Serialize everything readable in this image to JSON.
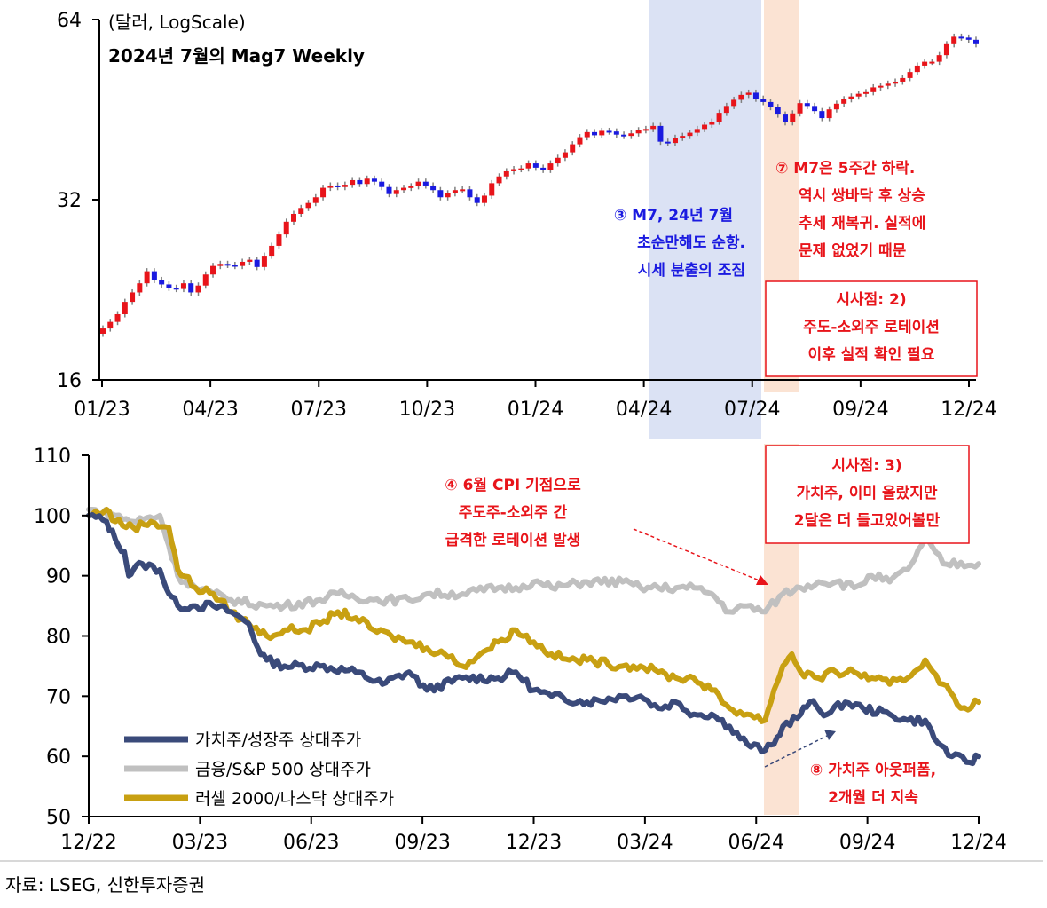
{
  "source": "자료: LSEG, 신한투자증권",
  "chart_data": [
    {
      "type": "candlestick",
      "title": "2024년 7월의 Mag7 Weekly",
      "unit_label": "(달러, LogScale)",
      "y_scale": "log",
      "ylim": [
        16,
        64
      ],
      "y_ticks": [
        "16",
        "32",
        "64"
      ],
      "x_ticks": [
        "01/23",
        "04/23",
        "07/23",
        "10/23",
        "01/24",
        "04/24",
        "07/24",
        "09/24",
        "12/24"
      ],
      "colors": {
        "up": "#e8141a",
        "down": "#1a1ae0",
        "wick": "#808080"
      },
      "highlights": [
        {
          "from_week": 65,
          "to_week": 79,
          "color": "#dbe2f4"
        },
        {
          "from_week": 80,
          "to_week": 84,
          "color": "#fbe3d3"
        }
      ],
      "weekly_close": [
        19.5,
        20.0,
        20.6,
        21.6,
        22.4,
        23.2,
        24.3,
        23.5,
        23.1,
        22.8,
        22.7,
        23.2,
        22.4,
        23.0,
        24.0,
        24.8,
        25.0,
        24.9,
        24.8,
        25.2,
        25.4,
        24.7,
        25.8,
        26.8,
        28.0,
        29.4,
        30.3,
        31.0,
        31.6,
        32.3,
        33.5,
        33.8,
        33.6,
        33.9,
        34.5,
        34.0,
        34.7,
        34.3,
        33.6,
        32.7,
        33.2,
        33.5,
        33.7,
        34.3,
        33.8,
        33.2,
        32.3,
        32.8,
        33.2,
        33.3,
        32.3,
        31.6,
        32.5,
        34.1,
        35.0,
        35.7,
        36.0,
        36.1,
        36.8,
        36.2,
        35.9,
        36.8,
        37.6,
        38.4,
        39.6,
        40.7,
        41.5,
        41.0,
        41.7,
        41.6,
        41.1,
        40.9,
        41.3,
        41.8,
        42.0,
        42.5,
        40.0,
        39.8,
        40.6,
        40.9,
        41.4,
        42.0,
        42.7,
        43.2,
        44.7,
        45.9,
        47.0,
        47.9,
        48.3,
        47.2,
        46.6,
        45.7,
        44.4,
        43.1,
        44.6,
        46.4,
        45.9,
        45.0,
        43.8,
        45.3,
        46.3,
        47.1,
        47.6,
        48.1,
        48.4,
        49.3,
        49.6,
        50.0,
        50.4,
        51.1,
        52.3,
        53.6,
        54.4,
        54.4,
        55.8,
        58.2,
        59.9,
        59.7,
        59.2,
        58.2
      ]
    },
    {
      "type": "line",
      "ylim": [
        50,
        110
      ],
      "y_ticks": [
        "50",
        "60",
        "70",
        "80",
        "90",
        "100",
        "110"
      ],
      "x_ticks": [
        "12/22",
        "03/23",
        "06/23",
        "09/23",
        "12/23",
        "03/24",
        "06/24",
        "09/24",
        "12/24"
      ],
      "highlight": {
        "from": 0.76,
        "to": 0.8,
        "color": "#fbe3d3"
      },
      "series": [
        {
          "name": "가치주/성장주 상대주가",
          "color": "#3a4a7a",
          "anchors": [
            [
              0,
              100
            ],
            [
              0.02,
              99
            ],
            [
              0.03,
              96
            ],
            [
              0.04,
              94
            ],
            [
              0.045,
              90
            ],
            [
              0.05,
              91
            ],
            [
              0.06,
              92
            ],
            [
              0.08,
              91
            ],
            [
              0.09,
              87
            ],
            [
              0.1,
              85
            ],
            [
              0.12,
              85
            ],
            [
              0.14,
              85
            ],
            [
              0.16,
              84
            ],
            [
              0.18,
              82
            ],
            [
              0.19,
              78
            ],
            [
              0.2,
              76
            ],
            [
              0.22,
              75
            ],
            [
              0.26,
              75
            ],
            [
              0.3,
              74
            ],
            [
              0.33,
              72
            ],
            [
              0.36,
              74
            ],
            [
              0.38,
              71
            ],
            [
              0.42,
              73
            ],
            [
              0.46,
              73
            ],
            [
              0.48,
              74
            ],
            [
              0.5,
              71
            ],
            [
              0.52,
              70
            ],
            [
              0.56,
              69
            ],
            [
              0.6,
              70
            ],
            [
              0.62,
              70
            ],
            [
              0.64,
              68
            ],
            [
              0.66,
              69
            ],
            [
              0.68,
              67
            ],
            [
              0.7,
              67
            ],
            [
              0.72,
              65
            ],
            [
              0.74,
              62
            ],
            [
              0.76,
              61
            ],
            [
              0.77,
              62
            ],
            [
              0.78,
              65
            ],
            [
              0.8,
              67
            ],
            [
              0.81,
              69
            ],
            [
              0.83,
              67
            ],
            [
              0.85,
              69
            ],
            [
              0.87,
              68
            ],
            [
              0.9,
              67
            ],
            [
              0.92,
              66
            ],
            [
              0.94,
              66
            ],
            [
              0.95,
              63
            ],
            [
              0.97,
              60
            ],
            [
              0.99,
              59
            ],
            [
              1,
              60
            ]
          ]
        },
        {
          "name": "금융/S&P 500 상대주가",
          "color": "#c0c0c0",
          "anchors": [
            [
              0,
              101
            ],
            [
              0.03,
              100
            ],
            [
              0.05,
              99
            ],
            [
              0.08,
              100
            ],
            [
              0.09,
              95
            ],
            [
              0.1,
              90
            ],
            [
              0.12,
              88
            ],
            [
              0.14,
              87
            ],
            [
              0.16,
              86
            ],
            [
              0.2,
              85
            ],
            [
              0.22,
              85
            ],
            [
              0.26,
              86
            ],
            [
              0.28,
              87
            ],
            [
              0.32,
              86
            ],
            [
              0.36,
              86
            ],
            [
              0.38,
              87
            ],
            [
              0.42,
              87
            ],
            [
              0.46,
              88
            ],
            [
              0.48,
              88
            ],
            [
              0.5,
              89
            ],
            [
              0.52,
              88
            ],
            [
              0.56,
              89
            ],
            [
              0.6,
              89
            ],
            [
              0.62,
              88
            ],
            [
              0.64,
              88
            ],
            [
              0.66,
              88
            ],
            [
              0.68,
              88
            ],
            [
              0.7,
              87
            ],
            [
              0.72,
              84
            ],
            [
              0.74,
              85
            ],
            [
              0.76,
              84
            ],
            [
              0.78,
              87
            ],
            [
              0.8,
              88
            ],
            [
              0.82,
              89
            ],
            [
              0.84,
              89
            ],
            [
              0.86,
              88
            ],
            [
              0.88,
              90
            ],
            [
              0.9,
              89
            ],
            [
              0.92,
              91
            ],
            [
              0.94,
              96
            ],
            [
              0.96,
              92
            ],
            [
              1,
              92
            ]
          ]
        },
        {
          "name": "러셀 2000/나스닥 상대주가",
          "color": "#c8a012",
          "anchors": [
            [
              0,
              100
            ],
            [
              0.02,
              101
            ],
            [
              0.03,
              99
            ],
            [
              0.05,
              98
            ],
            [
              0.07,
              99
            ],
            [
              0.09,
              98
            ],
            [
              0.1,
              91
            ],
            [
              0.12,
              88
            ],
            [
              0.14,
              87
            ],
            [
              0.16,
              84
            ],
            [
              0.18,
              82
            ],
            [
              0.2,
              80
            ],
            [
              0.22,
              81
            ],
            [
              0.24,
              81
            ],
            [
              0.26,
              82
            ],
            [
              0.28,
              84
            ],
            [
              0.3,
              83
            ],
            [
              0.32,
              81
            ],
            [
              0.34,
              80
            ],
            [
              0.36,
              79
            ],
            [
              0.38,
              78
            ],
            [
              0.4,
              77
            ],
            [
              0.42,
              75
            ],
            [
              0.44,
              77
            ],
            [
              0.46,
              79
            ],
            [
              0.48,
              81
            ],
            [
              0.5,
              79
            ],
            [
              0.52,
              77
            ],
            [
              0.54,
              76
            ],
            [
              0.56,
              76
            ],
            [
              0.6,
              75
            ],
            [
              0.62,
              75
            ],
            [
              0.64,
              74
            ],
            [
              0.66,
              73
            ],
            [
              0.68,
              73
            ],
            [
              0.7,
              71
            ],
            [
              0.72,
              68
            ],
            [
              0.74,
              67
            ],
            [
              0.76,
              66
            ],
            [
              0.77,
              71
            ],
            [
              0.78,
              75
            ],
            [
              0.79,
              77
            ],
            [
              0.8,
              74
            ],
            [
              0.82,
              73
            ],
            [
              0.84,
              74
            ],
            [
              0.86,
              74
            ],
            [
              0.88,
              73
            ],
            [
              0.9,
              72
            ],
            [
              0.92,
              73
            ],
            [
              0.94,
              76
            ],
            [
              0.96,
              72
            ],
            [
              0.98,
              68
            ],
            [
              1,
              69
            ]
          ]
        }
      ]
    }
  ],
  "annotations": {
    "a3": [
      "③ M7, 24년 7월",
      "초순만해도 순항.",
      "시세 분출의 조짐"
    ],
    "a7": [
      "⑦ M7은 5주간 하락.",
      "역시 쌍바닥 후 상승",
      "추세 재복귀. 실적에",
      "문제 없었기 때문"
    ],
    "box2": [
      "시사점: 2)",
      "주도-소외주 로테이션",
      "이후 실적 확인 필요"
    ],
    "a4": [
      "④ 6월 CPI 기점으로",
      "주도주-소외주 간",
      "급격한 로테이션 발생"
    ],
    "box3": [
      "시사점: 3)",
      "가치주, 이미 올랐지만",
      "2달은 더 들고있어볼만"
    ],
    "a8": [
      "⑧ 가치주 아웃퍼폼,",
      "2개월 더 지속"
    ]
  }
}
